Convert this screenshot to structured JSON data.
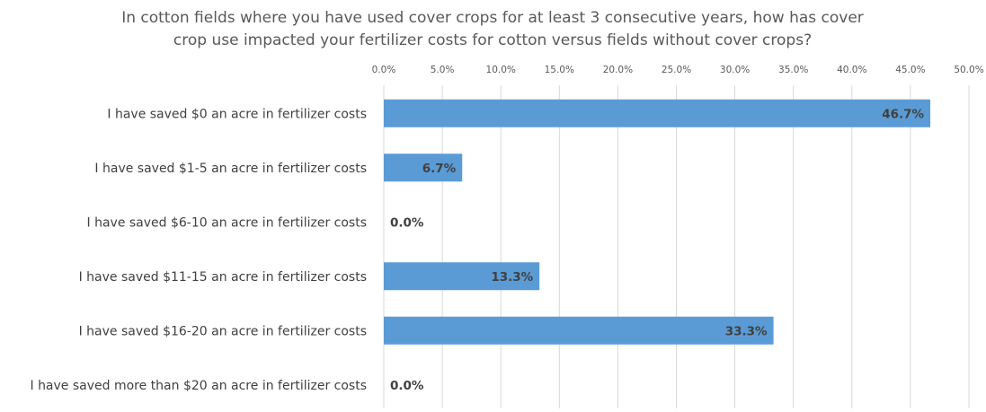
{
  "chart_data": {
    "type": "bar",
    "orientation": "horizontal",
    "title_lines": [
      "In cotton fields where you have used cover crops for at least 3 consecutive years, how has cover",
      "crop use impacted your fertilizer costs for cotton versus fields without cover crops?"
    ],
    "categories": [
      "I have saved $0 an acre in fertilizer costs",
      "I have saved $1-5 an acre in fertilizer costs",
      "I have saved $6-10 an acre in fertilizer costs",
      "I have saved $11-15 an acre in fertilizer costs",
      "I have saved $16-20 an acre in fertilizer costs",
      "I have saved more than $20 an acre in fertilizer costs"
    ],
    "values": [
      46.7,
      6.7,
      0.0,
      13.3,
      33.3,
      0.0
    ],
    "data_labels": [
      "46.7%",
      "6.7%",
      "0.0%",
      "13.3%",
      "33.3%",
      "0.0%"
    ],
    "xlim": [
      0,
      50
    ],
    "x_ticks": [
      "0.0%",
      "5.0%",
      "10.0%",
      "15.0%",
      "20.0%",
      "25.0%",
      "30.0%",
      "35.0%",
      "40.0%",
      "45.0%",
      "50.0%"
    ],
    "x_axis_position": "top",
    "grid": true,
    "legend": "none",
    "bar_color": "#5b9bd5"
  }
}
